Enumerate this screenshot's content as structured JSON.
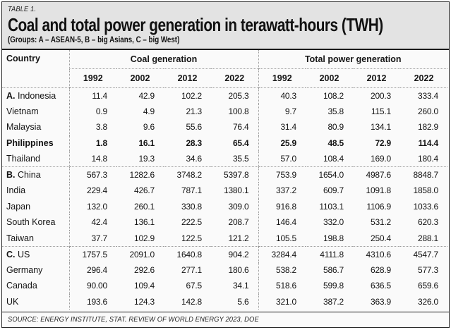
{
  "header": {
    "table_label": "TABLE 1.",
    "title": "Coal and total power generation in terawatt-hours (TWH)",
    "subtitle": "(Groups: A – ASEAN-5, B – big Asians, C – big West)"
  },
  "chart_data": {
    "type": "table",
    "title": "Coal and total power generation in terawatt-hours (TWH)",
    "country_header": "Country",
    "groups": [
      {
        "label": "Coal generation",
        "years": [
          "1992",
          "2002",
          "2012",
          "2022"
        ]
      },
      {
        "label": "Total power generation",
        "years": [
          "1992",
          "2002",
          "2012",
          "2022"
        ]
      }
    ],
    "rows": [
      {
        "group": "A",
        "prefix": "A.",
        "country": "Indonesia",
        "emphasis": false,
        "coal": [
          "11.4",
          "42.9",
          "102.2",
          "205.3"
        ],
        "total": [
          "40.3",
          "108.2",
          "200.3",
          "333.4"
        ]
      },
      {
        "group": "A",
        "prefix": "",
        "country": "Vietnam",
        "emphasis": false,
        "coal": [
          "0.9",
          "4.9",
          "21.3",
          "100.8"
        ],
        "total": [
          "9.7",
          "35.8",
          "115.1",
          "260.0"
        ]
      },
      {
        "group": "A",
        "prefix": "",
        "country": "Malaysia",
        "emphasis": false,
        "coal": [
          "3.8",
          "9.6",
          "55.6",
          "76.4"
        ],
        "total": [
          "31.4",
          "80.9",
          "134.1",
          "182.9"
        ]
      },
      {
        "group": "A",
        "prefix": "",
        "country": "Philippines",
        "emphasis": true,
        "coal": [
          "1.8",
          "16.1",
          "28.3",
          "65.4"
        ],
        "total": [
          "25.9",
          "48.5",
          "72.9",
          "114.4"
        ]
      },
      {
        "group": "A",
        "prefix": "",
        "country": "Thailand",
        "emphasis": false,
        "coal": [
          "14.8",
          "19.3",
          "34.6",
          "35.5"
        ],
        "total": [
          "57.0",
          "108.4",
          "169.0",
          "180.4"
        ]
      },
      {
        "group": "B",
        "prefix": "B.",
        "country": "China",
        "emphasis": false,
        "coal": [
          "567.3",
          "1282.6",
          "3748.2",
          "5397.8"
        ],
        "total": [
          "753.9",
          "1654.0",
          "4987.6",
          "8848.7"
        ]
      },
      {
        "group": "B",
        "prefix": "",
        "country": "India",
        "emphasis": false,
        "coal": [
          "229.4",
          "426.7",
          "787.1",
          "1380.1"
        ],
        "total": [
          "337.2",
          "609.7",
          "1091.8",
          "1858.0"
        ]
      },
      {
        "group": "B",
        "prefix": "",
        "country": "Japan",
        "emphasis": false,
        "coal": [
          "132.0",
          "260.1",
          "330.8",
          "309.0"
        ],
        "total": [
          "916.8",
          "1103.1",
          "1106.9",
          "1033.6"
        ]
      },
      {
        "group": "B",
        "prefix": "",
        "country": "South Korea",
        "emphasis": false,
        "coal": [
          "42.4",
          "136.1",
          "222.5",
          "208.7"
        ],
        "total": [
          "146.4",
          "332.0",
          "531.2",
          "620.3"
        ]
      },
      {
        "group": "B",
        "prefix": "",
        "country": "Taiwan",
        "emphasis": false,
        "coal": [
          "37.7",
          "102.9",
          "122.5",
          "121.2"
        ],
        "total": [
          "105.5",
          "198.8",
          "250.4",
          "288.1"
        ]
      },
      {
        "group": "C",
        "prefix": "C.",
        "country": "US",
        "emphasis": false,
        "coal": [
          "1757.5",
          "2091.0",
          "1640.8",
          "904.2"
        ],
        "total": [
          "3284.4",
          "4111.8",
          "4310.6",
          "4547.7"
        ]
      },
      {
        "group": "C",
        "prefix": "",
        "country": "Germany",
        "emphasis": false,
        "coal": [
          "296.4",
          "292.6",
          "277.1",
          "180.6"
        ],
        "total": [
          "538.2",
          "586.7",
          "628.9",
          "577.3"
        ]
      },
      {
        "group": "C",
        "prefix": "",
        "country": "Canada",
        "emphasis": false,
        "coal": [
          "90.00",
          "109.4",
          "67.5",
          "34.1"
        ],
        "total": [
          "518.6",
          "599.8",
          "636.5",
          "659.6"
        ]
      },
      {
        "group": "C",
        "prefix": "",
        "country": "UK",
        "emphasis": false,
        "coal": [
          "193.6",
          "124.3",
          "142.8",
          "5.6"
        ],
        "total": [
          "321.0",
          "387.2",
          "363.9",
          "326.0"
        ]
      }
    ]
  },
  "footer": {
    "source": "SOURCE: ENERGY INSTITUTE, STAT. REVIEW OF WORLD ENERGY 2023, DOE"
  },
  "colors": {
    "masthead_bg": "#e3e3e3",
    "table_bg": "#fafafa",
    "rule_black": "#1b1b1b",
    "rule_dotted": "#9b9b9b",
    "text": "#111111"
  }
}
